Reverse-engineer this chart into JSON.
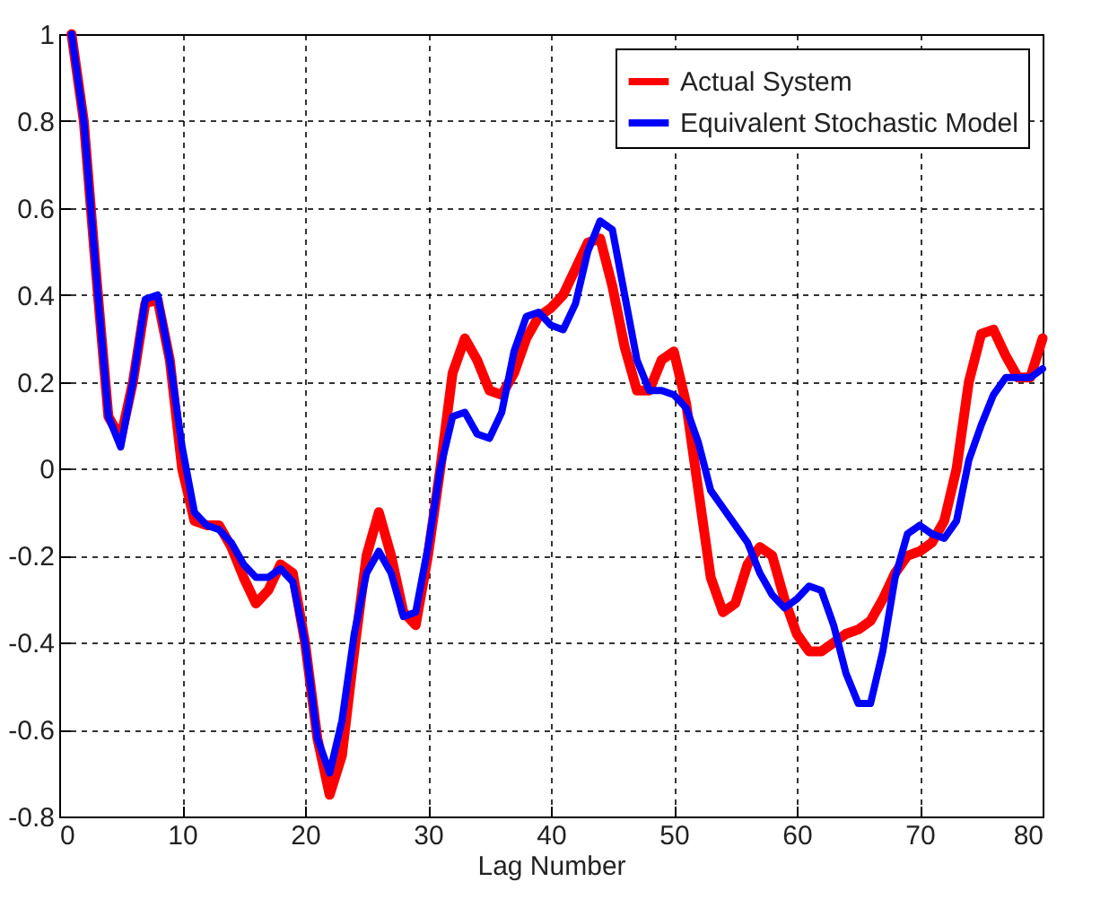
{
  "chart_data": {
    "type": "line",
    "xlabel": "Lag Number",
    "x": [
      1,
      2,
      3,
      4,
      5,
      6,
      7,
      8,
      9,
      10,
      11,
      12,
      13,
      14,
      15,
      16,
      17,
      18,
      19,
      20,
      21,
      22,
      23,
      24,
      25,
      26,
      27,
      28,
      29,
      30,
      31,
      32,
      33,
      34,
      35,
      36,
      37,
      38,
      39,
      40,
      41,
      42,
      43,
      44,
      45,
      46,
      47,
      48,
      49,
      50,
      51,
      52,
      53,
      54,
      55,
      56,
      57,
      58,
      59,
      60,
      61,
      62,
      63,
      64,
      65,
      66,
      67,
      68,
      69,
      70,
      71,
      72,
      73,
      74,
      75,
      76,
      77,
      78,
      79,
      80
    ],
    "series": [
      {
        "name": "Actual System",
        "color": "#ff0000",
        "values": [
          1,
          0.8,
          0.45,
          0.12,
          0.07,
          0.2,
          0.38,
          0.39,
          0.25,
          0.0,
          -0.12,
          -0.13,
          -0.13,
          -0.18,
          -0.25,
          -0.31,
          -0.28,
          -0.22,
          -0.24,
          -0.4,
          -0.62,
          -0.75,
          -0.66,
          -0.42,
          -0.2,
          -0.1,
          -0.2,
          -0.33,
          -0.36,
          -0.2,
          0.0,
          0.22,
          0.3,
          0.25,
          0.18,
          0.17,
          0.22,
          0.3,
          0.35,
          0.37,
          0.4,
          0.46,
          0.52,
          0.53,
          0.42,
          0.28,
          0.18,
          0.18,
          0.25,
          0.27,
          0.15,
          -0.05,
          -0.25,
          -0.33,
          -0.31,
          -0.22,
          -0.18,
          -0.2,
          -0.3,
          -0.38,
          -0.42,
          -0.42,
          -0.4,
          -0.38,
          -0.37,
          -0.35,
          -0.3,
          -0.24,
          -0.2,
          -0.19,
          -0.17,
          -0.12,
          0.0,
          0.2,
          0.31,
          0.32,
          0.26,
          0.21,
          0.21,
          0.3
        ]
      },
      {
        "name": "Equivalent Stochastic Model",
        "color": "#0000ff",
        "values": [
          1,
          0.8,
          0.45,
          0.12,
          0.05,
          0.2,
          0.39,
          0.4,
          0.25,
          0.05,
          -0.1,
          -0.13,
          -0.14,
          -0.17,
          -0.22,
          -0.25,
          -0.25,
          -0.23,
          -0.26,
          -0.4,
          -0.62,
          -0.7,
          -0.58,
          -0.38,
          -0.24,
          -0.19,
          -0.24,
          -0.34,
          -0.33,
          -0.18,
          0.0,
          0.12,
          0.13,
          0.08,
          0.07,
          0.13,
          0.27,
          0.35,
          0.36,
          0.33,
          0.32,
          0.38,
          0.5,
          0.57,
          0.55,
          0.4,
          0.25,
          0.18,
          0.18,
          0.17,
          0.14,
          0.06,
          -0.05,
          -0.09,
          -0.13,
          -0.17,
          -0.24,
          -0.29,
          -0.32,
          -0.3,
          -0.27,
          -0.28,
          -0.36,
          -0.47,
          -0.54,
          -0.54,
          -0.42,
          -0.25,
          -0.15,
          -0.13,
          -0.15,
          -0.16,
          -0.12,
          0.02,
          0.1,
          0.17,
          0.21,
          0.21,
          0.21,
          0.23
        ]
      }
    ],
    "xlim": [
      0,
      80
    ],
    "xticks": [
      0,
      10,
      20,
      30,
      40,
      50,
      60,
      70,
      80
    ],
    "ylim": [
      -0.8,
      1
    ],
    "yticks": [
      -0.8,
      -0.6,
      -0.4,
      -0.2,
      0,
      0.2,
      0.4,
      0.6,
      0.8,
      1
    ],
    "grid": true,
    "legend": "top right",
    "line_style": "solid",
    "marker": "none"
  }
}
